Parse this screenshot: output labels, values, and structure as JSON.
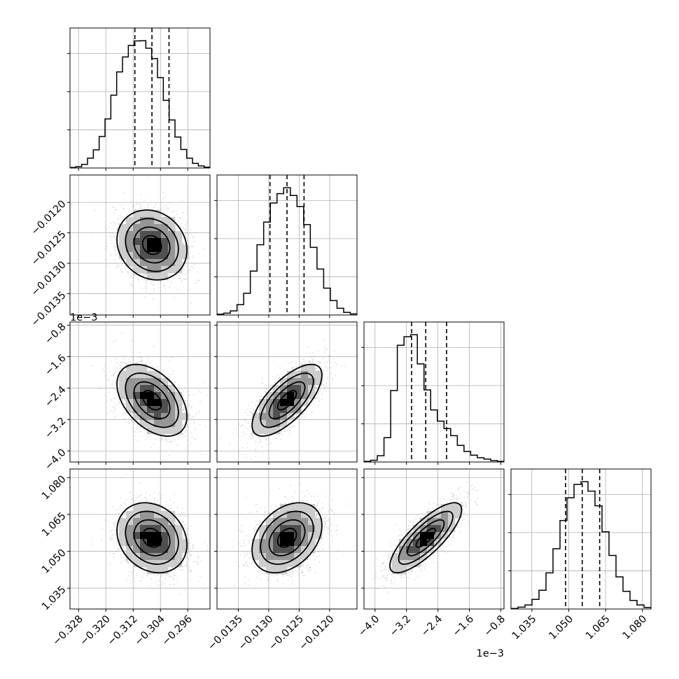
{
  "chart_data": {
    "type": "corner",
    "title": "",
    "axis_labels": [
      "",
      "",
      "",
      ""
    ],
    "parameters": [
      {
        "range": [
          -0.3305,
          -0.2895
        ],
        "ticks": [
          -0.328,
          -0.32,
          -0.312,
          -0.304,
          -0.296
        ],
        "tick_labels": [
          "−0.328",
          "−0.320",
          "−0.312",
          "−0.304",
          "−0.296"
        ],
        "offset_label": "",
        "quantiles": [
          -0.3115,
          -0.3065,
          -0.3015
        ]
      },
      {
        "range": [
          -0.01385,
          -0.01155
        ],
        "ticks": [
          -0.0135,
          -0.013,
          -0.0125,
          -0.012
        ],
        "tick_labels": [
          "−0.0135",
          "−0.0130",
          "−0.0125",
          "−0.0120"
        ],
        "offset_label": "",
        "quantiles": [
          -0.01298,
          -0.0127,
          -0.01242
        ]
      },
      {
        "range": [
          -4.28,
          -0.72
        ],
        "ticks": [
          -4.0,
          -3.2,
          -2.4,
          -1.6,
          -0.8
        ],
        "tick_labels": [
          "−4.0",
          "−3.2",
          "−2.4",
          "−1.6",
          "−0.8"
        ],
        "offset_label": "1e−3",
        "quantiles": [
          -3.07,
          -2.71,
          -2.18
        ]
      },
      {
        "range": [
          1.0265,
          1.0835
        ],
        "ticks": [
          1.035,
          1.05,
          1.065,
          1.08
        ],
        "tick_labels": [
          "1.035",
          "1.050",
          "1.065",
          "1.080"
        ],
        "offset_label": "",
        "quantiles": [
          1.0487,
          1.0555,
          1.0626
        ]
      }
    ],
    "histograms": [
      [
        2,
        5,
        14,
        38,
        70,
        122,
        190,
        282,
        372,
        430,
        475,
        492,
        493,
        464,
        424,
        350,
        262,
        186,
        120,
        72,
        38,
        18,
        8,
        3
      ],
      [
        3,
        7,
        16,
        40,
        84,
        170,
        272,
        360,
        434,
        470,
        493,
        463,
        420,
        350,
        262,
        178,
        104,
        56,
        26,
        10,
        4
      ],
      [
        2,
        6,
        22,
        85,
        250,
        408,
        438,
        445,
        343,
        252,
        182,
        143,
        117,
        92,
        58,
        37,
        24,
        15,
        10,
        5,
        2
      ],
      [
        2,
        7,
        15,
        36,
        70,
        135,
        225,
        330,
        415,
        465,
        475,
        440,
        385,
        288,
        200,
        120,
        66,
        32,
        15,
        6
      ]
    ],
    "hist_range": [
      [
        -0.3305,
        -0.2895
      ],
      [
        -0.01385,
        -0.01155
      ],
      [
        -4.28,
        -0.72
      ],
      [
        1.0265,
        1.0835
      ]
    ],
    "correlations": [
      [
        1.0,
        -0.15,
        -0.45,
        -0.2
      ],
      [
        -0.15,
        1.0,
        0.7,
        0.35
      ],
      [
        -0.45,
        0.7,
        1.0,
        0.8
      ],
      [
        -0.2,
        0.35,
        0.8,
        1.0
      ]
    ],
    "density_levels": [
      "0.5 sigma",
      "1 sigma",
      "1.5 sigma",
      "2 sigma"
    ],
    "grid": true,
    "colors": {
      "line": "#000000",
      "grid": "#b0b0b0",
      "samples": "#9a9a9a",
      "background": "#ffffff"
    }
  }
}
